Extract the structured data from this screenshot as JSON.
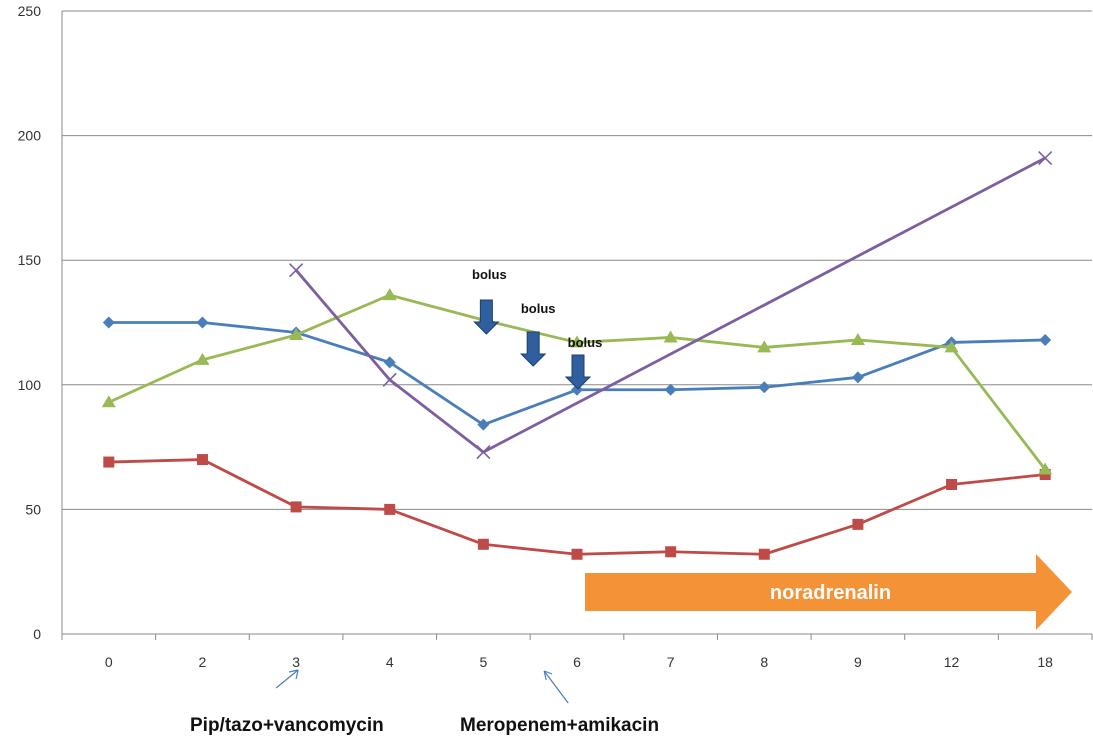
{
  "chart_data": {
    "type": "line",
    "title": "",
    "xlabel": "",
    "ylabel": "",
    "categories": [
      "0",
      "2",
      "3",
      "4",
      "5",
      "6",
      "7",
      "8",
      "9",
      "12",
      "18"
    ],
    "ylim": [
      0,
      250
    ],
    "yticks": [
      0,
      50,
      100,
      150,
      200,
      250
    ],
    "grid": "horizontal",
    "legend": "none",
    "series": [
      {
        "color": "#4a7ebb",
        "marker": "diamond",
        "values": [
          125,
          125,
          121,
          109,
          84,
          98,
          98,
          99,
          103,
          117,
          118
        ]
      },
      {
        "color": "#be4b48",
        "marker": "square",
        "values": [
          69,
          70,
          51,
          50,
          36,
          32,
          33,
          32,
          44,
          60,
          64
        ]
      },
      {
        "color": "#98b954",
        "marker": "triangle",
        "values": [
          93,
          110,
          120,
          136,
          126,
          117,
          119,
          115,
          118,
          115,
          66
        ]
      },
      {
        "color": "#7d5fa0",
        "marker": "x",
        "values": [
          null,
          null,
          146,
          102,
          73,
          null,
          null,
          null,
          null,
          null,
          191
        ]
      }
    ],
    "annotations": [
      {
        "text": "bolus",
        "x_index": 4.0
      },
      {
        "text": "bolus",
        "x_index": 4.5
      },
      {
        "text": "bolus",
        "x_index": 5.0
      }
    ],
    "bolus_arrow_color": "#2f5f9e",
    "range_arrow": {
      "text": "noradrenalin",
      "from_index": 5,
      "to_index": 10,
      "color": "#f39237"
    },
    "treatments": [
      {
        "text": "Pip/tazo+vancomycin",
        "x_index": 2
      },
      {
        "text": "Meropenem+amikacin",
        "x_index": 4.5
      }
    ]
  }
}
